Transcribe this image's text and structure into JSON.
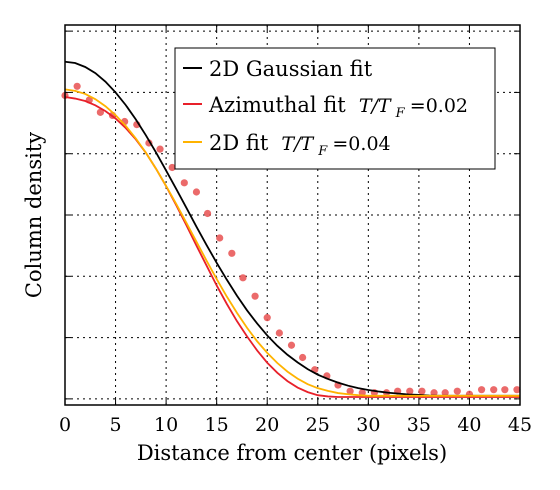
{
  "chart_data": {
    "type": "line",
    "title": "",
    "xlabel": "Distance from center (pixels)",
    "ylabel": "Column density",
    "xlim": [
      0,
      45
    ],
    "ylim": [
      -0.02,
      1.22
    ],
    "x_ticks": [
      0,
      5,
      10,
      15,
      20,
      25,
      30,
      35,
      40,
      45
    ],
    "grid": true,
    "legend_position": "top-right",
    "series": [
      {
        "name": "2D Gaussian fit",
        "kind": "line",
        "color": "#000000",
        "x": [
          0,
          1,
          2,
          3,
          4,
          5,
          6,
          7,
          8,
          9,
          10,
          11,
          12,
          13,
          14,
          15,
          16,
          17,
          18,
          19,
          20,
          21,
          22,
          23,
          24,
          25,
          26,
          27,
          28,
          29,
          30,
          31,
          32,
          33,
          34,
          35,
          36,
          37,
          38,
          39,
          40,
          41,
          42,
          43,
          44,
          45
        ],
        "y": [
          1.1,
          1.096,
          1.083,
          1.063,
          1.035,
          1.0,
          0.959,
          0.912,
          0.86,
          0.804,
          0.745,
          0.685,
          0.624,
          0.562,
          0.502,
          0.444,
          0.389,
          0.337,
          0.289,
          0.246,
          0.207,
          0.173,
          0.144,
          0.119,
          0.097,
          0.079,
          0.065,
          0.053,
          0.043,
          0.035,
          0.029,
          0.024,
          0.02,
          0.017,
          0.014,
          0.013,
          0.011,
          0.01,
          0.01,
          0.01,
          0.01,
          0.01,
          0.01,
          0.01,
          0.01,
          0.01
        ]
      },
      {
        "name": "Azimuthal fit",
        "name_math": "T/T",
        "name_sub": "F",
        "name_value": "=0.02",
        "kind": "line",
        "color": "#e8202a",
        "x": [
          0,
          1,
          2,
          3,
          4,
          5,
          6,
          7,
          8,
          9,
          10,
          11,
          12,
          13,
          14,
          15,
          16,
          17,
          18,
          19,
          20,
          21,
          22,
          23,
          24,
          25,
          26,
          27,
          28,
          29,
          30,
          31,
          32,
          33,
          34,
          35,
          36,
          37,
          38,
          39,
          40,
          41,
          42,
          43,
          44,
          45
        ],
        "y": [
          0.985,
          0.98,
          0.972,
          0.958,
          0.939,
          0.915,
          0.884,
          0.847,
          0.803,
          0.751,
          0.694,
          0.632,
          0.567,
          0.5,
          0.435,
          0.37,
          0.31,
          0.254,
          0.204,
          0.158,
          0.118,
          0.085,
          0.058,
          0.037,
          0.022,
          0.012,
          0.008,
          0.006,
          0.006,
          0.006,
          0.006,
          0.006,
          0.006,
          0.006,
          0.006,
          0.006,
          0.006,
          0.006,
          0.006,
          0.006,
          0.006,
          0.006,
          0.006,
          0.006,
          0.006,
          0.006
        ]
      },
      {
        "name": "2D fit",
        "name_math": "T/T",
        "name_sub": "F",
        "name_value": "=0.04",
        "kind": "line",
        "color": "#ffb300",
        "x": [
          0,
          1,
          2,
          3,
          4,
          5,
          6,
          7,
          8,
          9,
          10,
          11,
          12,
          13,
          14,
          15,
          16,
          17,
          18,
          19,
          20,
          21,
          22,
          23,
          24,
          25,
          26,
          27,
          28,
          29,
          30,
          31,
          32,
          33,
          34,
          35,
          36,
          37,
          38,
          39,
          40,
          41,
          42,
          43,
          44,
          45
        ],
        "y": [
          1.01,
          1.005,
          0.995,
          0.978,
          0.955,
          0.926,
          0.891,
          0.85,
          0.803,
          0.751,
          0.695,
          0.636,
          0.575,
          0.513,
          0.451,
          0.391,
          0.334,
          0.281,
          0.232,
          0.188,
          0.15,
          0.117,
          0.089,
          0.066,
          0.048,
          0.035,
          0.026,
          0.019,
          0.015,
          0.012,
          0.01,
          0.01,
          0.01,
          0.01,
          0.01,
          0.01,
          0.01,
          0.01,
          0.01,
          0.01,
          0.01,
          0.01,
          0.01,
          0.01,
          0.01,
          0.01
        ]
      },
      {
        "name": "",
        "kind": "scatter",
        "color": "#e85050",
        "x": [
          0,
          1.2,
          2.4,
          3.5,
          4.7,
          5.9,
          7.1,
          8.3,
          9.4,
          10.6,
          11.8,
          13,
          14.1,
          15.3,
          16.5,
          17.6,
          18.8,
          20,
          21.2,
          22.4,
          23.5,
          24.7,
          25.9,
          27,
          28.2,
          29.4,
          30.6,
          31.8,
          32.9,
          34.1,
          35.3,
          36.5,
          37.6,
          38.8,
          40,
          41.2,
          42.4,
          43.5,
          44.7
        ],
        "y": [
          0.99,
          1.02,
          0.975,
          0.935,
          0.925,
          0.905,
          0.895,
          0.835,
          0.815,
          0.755,
          0.705,
          0.675,
          0.605,
          0.525,
          0.475,
          0.395,
          0.335,
          0.265,
          0.215,
          0.175,
          0.135,
          0.095,
          0.075,
          0.045,
          0.025,
          0.02,
          0.02,
          0.02,
          0.025,
          0.025,
          0.025,
          0.02,
          0.02,
          0.025,
          0.015,
          0.03,
          0.03,
          0.03,
          0.03
        ]
      }
    ]
  }
}
